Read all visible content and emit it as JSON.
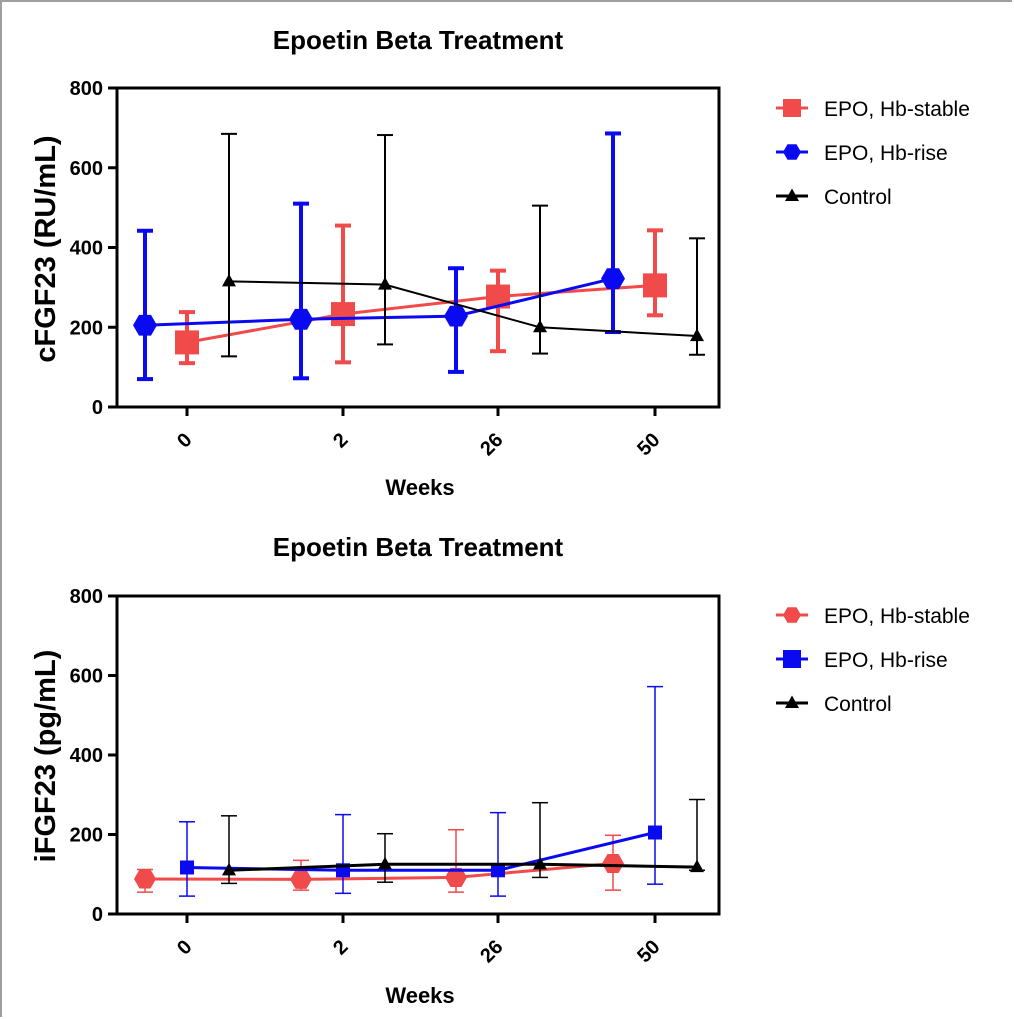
{
  "chart_data": [
    {
      "type": "line",
      "title": "Epoetin Beta Treatment",
      "xlabel": "Weeks",
      "ylabel": "cFGF23 (RU/mL)",
      "categories": [
        "0",
        "2",
        "26",
        "50"
      ],
      "ylim": [
        0,
        800
      ],
      "yticks": [
        0,
        200,
        400,
        600,
        800
      ],
      "grid": false,
      "legend_position": "right",
      "series": [
        {
          "name": "EPO, Hb-stable",
          "color": "#f04a4a",
          "marker": "square",
          "values": [
            162,
            233,
            277,
            305
          ],
          "err_low": [
            110,
            112,
            140,
            230
          ],
          "err_high": [
            238,
            455,
            342,
            443
          ]
        },
        {
          "name": "EPO, Hb-rise",
          "color": "#0a0af0",
          "marker": "hexagon",
          "values": [
            205,
            220,
            228,
            322
          ],
          "err_low": [
            70,
            72,
            88,
            188
          ],
          "err_high": [
            442,
            510,
            348,
            686
          ]
        },
        {
          "name": "Control",
          "color": "#000000",
          "marker": "triangle",
          "values": [
            315,
            307,
            200,
            178
          ],
          "err_low": [
            127,
            157,
            134,
            131
          ],
          "err_high": [
            685,
            682,
            505,
            423
          ]
        }
      ]
    },
    {
      "type": "line",
      "title": "Epoetin Beta Treatment",
      "xlabel": "Weeks",
      "ylabel": "iFGF23 (pg/mL)",
      "categories": [
        "0",
        "2",
        "26",
        "50"
      ],
      "ylim": [
        0,
        800
      ],
      "yticks": [
        0,
        200,
        400,
        600,
        800
      ],
      "grid": false,
      "legend_position": "right",
      "series": [
        {
          "name": "EPO, Hb-stable",
          "color": "#f04a4a",
          "marker": "hexagon",
          "values": [
            88,
            87,
            92,
            127
          ],
          "err_low": [
            55,
            60,
            55,
            60
          ],
          "err_high": [
            112,
            135,
            212,
            198
          ]
        },
        {
          "name": "EPO, Hb-rise",
          "color": "#0a0af0",
          "marker": "square",
          "values": [
            117,
            110,
            110,
            205
          ],
          "err_low": [
            45,
            52,
            45,
            75
          ],
          "err_high": [
            232,
            250,
            255,
            572
          ]
        },
        {
          "name": "Control",
          "color": "#000000",
          "marker": "triangle",
          "values": [
            110,
            125,
            125,
            118
          ],
          "err_low": [
            77,
            80,
            92,
            110
          ],
          "err_high": [
            247,
            202,
            280,
            288
          ]
        }
      ]
    }
  ]
}
